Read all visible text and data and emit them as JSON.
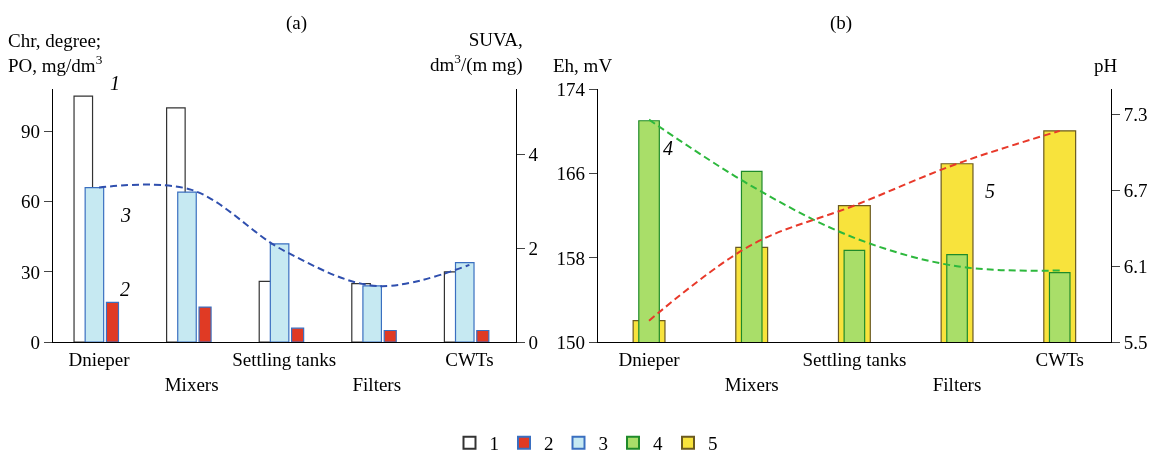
{
  "chart_data": [
    {
      "type": "bar",
      "title": "(a)",
      "ylabel": "Chr, degree;\nPO, mg/dm$^{3}$",
      "y2label": "SUVA,\ndm$^{3}$/(m mg)",
      "categories": [
        "Dnieper",
        "Mixers",
        "Settling tanks",
        "Filters",
        "CWTs"
      ],
      "series": [
        {
          "name": "1",
          "color": "#ffffff",
          "values": [
            105,
            100,
            26,
            25,
            30
          ]
        },
        {
          "name": "2",
          "color": "#e03a24",
          "values": [
            17,
            15,
            6,
            5,
            5
          ]
        },
        {
          "name": "3",
          "color": "#c6e9f2",
          "values": [
            3.3,
            3.2,
            2.1,
            1.2,
            1.7
          ],
          "axis": "y2"
        },
        {
          "type": "line",
          "color": "#2f4fae",
          "values": [
            3.3,
            3.25,
            1.95,
            1.2,
            1.65
          ],
          "axis": "y2",
          "line_style": "dashed",
          "marker": "none"
        }
      ],
      "annotations": [
        "1",
        "2",
        "3"
      ],
      "ylim": [
        0,
        108
      ],
      "yticks": [
        0,
        30,
        60,
        90
      ],
      "y2lim": [
        0,
        5.4
      ],
      "y2ticks": [
        0,
        2,
        4
      ],
      "legend": "bottom"
    },
    {
      "type": "bar",
      "title": "(b)",
      "ylabel": "Eh, mV",
      "y2label": "pH",
      "categories": [
        "Dnieper",
        "Mixers",
        "Settling tanks",
        "Filters",
        "CWTs"
      ],
      "series": [
        {
          "name": "4",
          "color": "#a9de69",
          "values": [
            171,
            166.2,
            158.7,
            158.3,
            156.6
          ]
        },
        {
          "name": "5",
          "color": "#f8e33c",
          "values": [
            5.67,
            6.25,
            6.58,
            6.91,
            7.17
          ],
          "axis": "y2"
        },
        {
          "type": "line",
          "color": "#2db83d",
          "values": [
            171.1,
            164.8,
            159.9,
            157.2,
            156.8
          ],
          "line_style": "dashed",
          "marker": "none"
        },
        {
          "type": "line",
          "color": "#e8392a",
          "values": [
            5.67,
            6.27,
            6.58,
            6.91,
            7.17
          ],
          "axis": "y2",
          "line_style": "dashed",
          "marker": "none"
        }
      ],
      "annotations": [
        "4",
        "5"
      ],
      "ylim": [
        150,
        174
      ],
      "yticks": [
        150,
        158,
        166,
        174
      ],
      "y2lim": [
        5.5,
        7.5
      ],
      "y2ticks": [
        5.5,
        6.1,
        6.7,
        7.3
      ],
      "legend": "bottom"
    }
  ]
}
